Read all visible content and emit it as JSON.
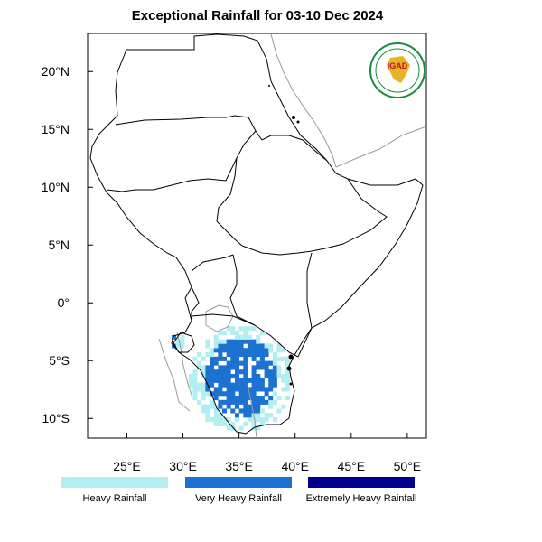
{
  "title": "Exceptional Rainfall for 03-10 Dec 2024",
  "axes": {
    "lon_range": [
      21.5,
      51.7
    ],
    "lat_range": [
      -11.7,
      23.3
    ],
    "lon_ticks": [
      {
        "value": 25,
        "label": "25°E"
      },
      {
        "value": 30,
        "label": "30°E"
      },
      {
        "value": 35,
        "label": "35°E"
      },
      {
        "value": 40,
        "label": "40°E"
      },
      {
        "value": 45,
        "label": "45°E"
      },
      {
        "value": 50,
        "label": "50°E"
      }
    ],
    "lat_ticks": [
      {
        "value": 20,
        "label": "20°N"
      },
      {
        "value": 15,
        "label": "15°N"
      },
      {
        "value": 10,
        "label": "10°N"
      },
      {
        "value": 5,
        "label": "5°N"
      },
      {
        "value": 0,
        "label": "0°"
      },
      {
        "value": -5,
        "label": "5°S"
      },
      {
        "value": -10,
        "label": "10°S"
      }
    ]
  },
  "logo": {
    "text": "IGAD",
    "ring_color": "#1a8a3c",
    "text_color": "#c8102e"
  },
  "legend": [
    {
      "label": "Heavy Rainfall",
      "color": "#b3eef2"
    },
    {
      "label": "Very Heavy Rainfall",
      "color": "#1d72d1"
    },
    {
      "label": "Extremely Heavy Rainfall",
      "color": "#00008b"
    }
  ],
  "colors": {
    "border": "#000000",
    "outline": "#999999"
  }
}
